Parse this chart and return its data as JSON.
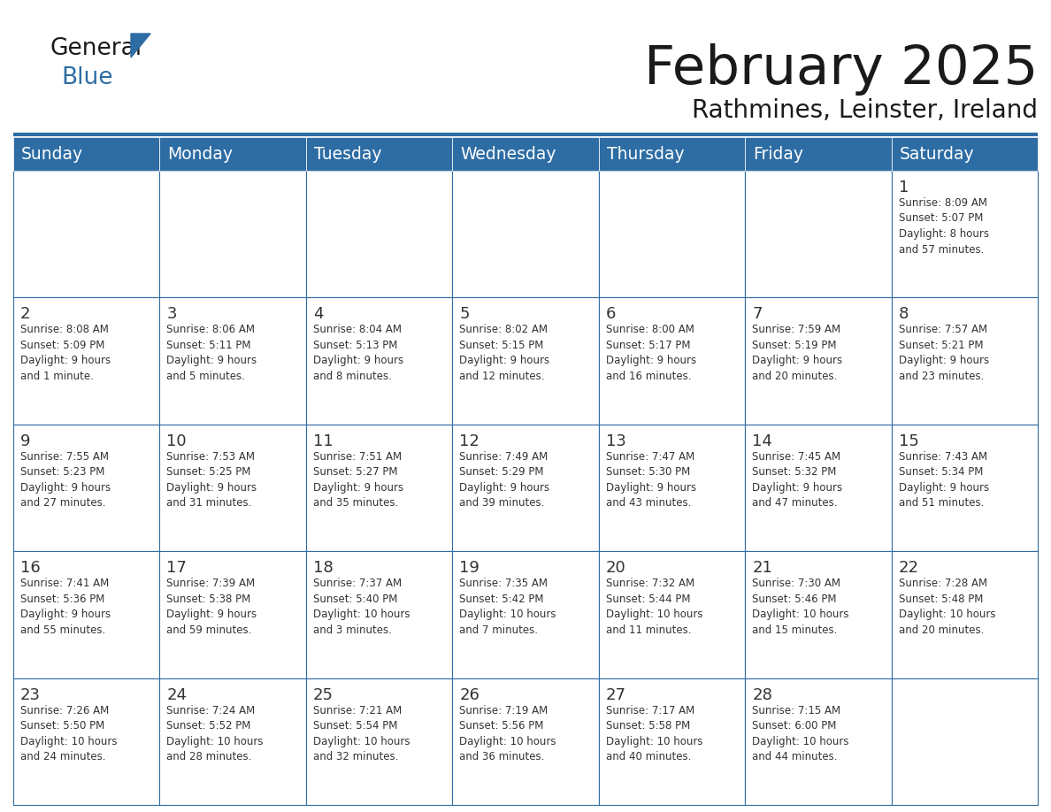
{
  "title": "February 2025",
  "subtitle": "Rathmines, Leinster, Ireland",
  "days_of_week": [
    "Sunday",
    "Monday",
    "Tuesday",
    "Wednesday",
    "Thursday",
    "Friday",
    "Saturday"
  ],
  "header_bg": "#2E6DA4",
  "header_text": "#FFFFFF",
  "cell_bg": "#FFFFFF",
  "grid_line_color": "#2E6DA4",
  "text_color": "#333333",
  "title_color": "#1a1a1a",
  "logo_general_color": "#1a1a1a",
  "logo_blue_color": "#2E6DA4",
  "weeks": [
    [
      {
        "day": null,
        "info": null
      },
      {
        "day": null,
        "info": null
      },
      {
        "day": null,
        "info": null
      },
      {
        "day": null,
        "info": null
      },
      {
        "day": null,
        "info": null
      },
      {
        "day": null,
        "info": null
      },
      {
        "day": 1,
        "info": "Sunrise: 8:09 AM\nSunset: 5:07 PM\nDaylight: 8 hours\nand 57 minutes."
      }
    ],
    [
      {
        "day": 2,
        "info": "Sunrise: 8:08 AM\nSunset: 5:09 PM\nDaylight: 9 hours\nand 1 minute."
      },
      {
        "day": 3,
        "info": "Sunrise: 8:06 AM\nSunset: 5:11 PM\nDaylight: 9 hours\nand 5 minutes."
      },
      {
        "day": 4,
        "info": "Sunrise: 8:04 AM\nSunset: 5:13 PM\nDaylight: 9 hours\nand 8 minutes."
      },
      {
        "day": 5,
        "info": "Sunrise: 8:02 AM\nSunset: 5:15 PM\nDaylight: 9 hours\nand 12 minutes."
      },
      {
        "day": 6,
        "info": "Sunrise: 8:00 AM\nSunset: 5:17 PM\nDaylight: 9 hours\nand 16 minutes."
      },
      {
        "day": 7,
        "info": "Sunrise: 7:59 AM\nSunset: 5:19 PM\nDaylight: 9 hours\nand 20 minutes."
      },
      {
        "day": 8,
        "info": "Sunrise: 7:57 AM\nSunset: 5:21 PM\nDaylight: 9 hours\nand 23 minutes."
      }
    ],
    [
      {
        "day": 9,
        "info": "Sunrise: 7:55 AM\nSunset: 5:23 PM\nDaylight: 9 hours\nand 27 minutes."
      },
      {
        "day": 10,
        "info": "Sunrise: 7:53 AM\nSunset: 5:25 PM\nDaylight: 9 hours\nand 31 minutes."
      },
      {
        "day": 11,
        "info": "Sunrise: 7:51 AM\nSunset: 5:27 PM\nDaylight: 9 hours\nand 35 minutes."
      },
      {
        "day": 12,
        "info": "Sunrise: 7:49 AM\nSunset: 5:29 PM\nDaylight: 9 hours\nand 39 minutes."
      },
      {
        "day": 13,
        "info": "Sunrise: 7:47 AM\nSunset: 5:30 PM\nDaylight: 9 hours\nand 43 minutes."
      },
      {
        "day": 14,
        "info": "Sunrise: 7:45 AM\nSunset: 5:32 PM\nDaylight: 9 hours\nand 47 minutes."
      },
      {
        "day": 15,
        "info": "Sunrise: 7:43 AM\nSunset: 5:34 PM\nDaylight: 9 hours\nand 51 minutes."
      }
    ],
    [
      {
        "day": 16,
        "info": "Sunrise: 7:41 AM\nSunset: 5:36 PM\nDaylight: 9 hours\nand 55 minutes."
      },
      {
        "day": 17,
        "info": "Sunrise: 7:39 AM\nSunset: 5:38 PM\nDaylight: 9 hours\nand 59 minutes."
      },
      {
        "day": 18,
        "info": "Sunrise: 7:37 AM\nSunset: 5:40 PM\nDaylight: 10 hours\nand 3 minutes."
      },
      {
        "day": 19,
        "info": "Sunrise: 7:35 AM\nSunset: 5:42 PM\nDaylight: 10 hours\nand 7 minutes."
      },
      {
        "day": 20,
        "info": "Sunrise: 7:32 AM\nSunset: 5:44 PM\nDaylight: 10 hours\nand 11 minutes."
      },
      {
        "day": 21,
        "info": "Sunrise: 7:30 AM\nSunset: 5:46 PM\nDaylight: 10 hours\nand 15 minutes."
      },
      {
        "day": 22,
        "info": "Sunrise: 7:28 AM\nSunset: 5:48 PM\nDaylight: 10 hours\nand 20 minutes."
      }
    ],
    [
      {
        "day": 23,
        "info": "Sunrise: 7:26 AM\nSunset: 5:50 PM\nDaylight: 10 hours\nand 24 minutes."
      },
      {
        "day": 24,
        "info": "Sunrise: 7:24 AM\nSunset: 5:52 PM\nDaylight: 10 hours\nand 28 minutes."
      },
      {
        "day": 25,
        "info": "Sunrise: 7:21 AM\nSunset: 5:54 PM\nDaylight: 10 hours\nand 32 minutes."
      },
      {
        "day": 26,
        "info": "Sunrise: 7:19 AM\nSunset: 5:56 PM\nDaylight: 10 hours\nand 36 minutes."
      },
      {
        "day": 27,
        "info": "Sunrise: 7:17 AM\nSunset: 5:58 PM\nDaylight: 10 hours\nand 40 minutes."
      },
      {
        "day": 28,
        "info": "Sunrise: 7:15 AM\nSunset: 6:00 PM\nDaylight: 10 hours\nand 44 minutes."
      },
      {
        "day": null,
        "info": null
      }
    ]
  ]
}
